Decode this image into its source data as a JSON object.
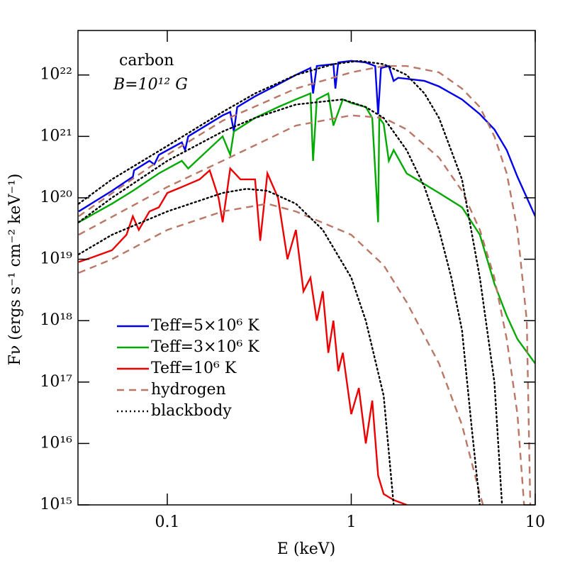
{
  "chart_data": {
    "type": "line",
    "annotations": [
      "carbon",
      "B=10¹² G"
    ],
    "xlabel": "E (keV)",
    "ylabel": "Fν (ergs s⁻¹ cm⁻² keV⁻¹)",
    "xscale": "log",
    "yscale": "log",
    "xlim": [
      0.0327,
      10
    ],
    "ylim": [
      1000000000000000.0,
      5.3e+22
    ],
    "xticks": [
      0.1,
      1,
      10
    ],
    "yticks": [
      {
        "value": 1000000000000000.0,
        "label": "10¹⁵"
      },
      {
        "value": 1e+16,
        "label": "10¹⁶"
      },
      {
        "value": 1e+17,
        "label": "10¹⁷"
      },
      {
        "value": 1e+18,
        "label": "10¹⁸"
      },
      {
        "value": 1e+19,
        "label": "10¹⁹"
      },
      {
        "value": 1e+20,
        "label": "10²⁰"
      },
      {
        "value": 1e+21,
        "label": "10²¹"
      },
      {
        "value": 1e+22,
        "label": "10²²"
      }
    ],
    "legend": "lower left",
    "series": [
      {
        "name": "Teff=5×10⁶ K",
        "color": "#0000ee",
        "style": "solid",
        "x": [
          0.033,
          0.05,
          0.065,
          0.066,
          0.08,
          0.085,
          0.09,
          0.12,
          0.125,
          0.13,
          0.2,
          0.22,
          0.23,
          0.24,
          0.3,
          0.4,
          0.5,
          0.6,
          0.62,
          0.65,
          0.8,
          0.82,
          0.85,
          1,
          1.2,
          1.35,
          1.4,
          1.45,
          1.6,
          1.7,
          1.8,
          2.5,
          3,
          4,
          5,
          6,
          7,
          8,
          10
        ],
        "values": [
          6e+19,
          1.3e+20,
          2.2e+20,
          2.8e+20,
          4e+20,
          3.5e+20,
          5e+20,
          8e+20,
          6e+20,
          1e+21,
          2.2e+21,
          2.5e+21,
          1.2e+21,
          3e+21,
          4.5e+21,
          7e+21,
          1e+22,
          1.3e+22,
          5e+21,
          1.4e+22,
          1.5e+22,
          6e+21,
          1.6e+22,
          1.7e+22,
          1.6e+22,
          1.4e+22,
          2.3e+21,
          1.3e+22,
          1.4e+22,
          8e+21,
          9e+21,
          8e+21,
          6.5e+21,
          4e+21,
          2.3e+21,
          1.3e+21,
          6e+20,
          2.2e+20,
          5e+19
        ]
      },
      {
        "name": "Teff=3×10⁶ K",
        "color": "#00aa00",
        "style": "solid",
        "x": [
          0.033,
          0.05,
          0.065,
          0.09,
          0.12,
          0.13,
          0.2,
          0.22,
          0.23,
          0.3,
          0.4,
          0.5,
          0.6,
          0.62,
          0.65,
          0.75,
          0.8,
          0.9,
          1,
          1.2,
          1.3,
          1.4,
          1.42,
          1.5,
          1.6,
          1.7,
          2,
          3,
          4,
          5,
          6,
          7,
          8,
          10
        ],
        "values": [
          4e+19,
          8e+19,
          1.3e+20,
          2.5e+20,
          4e+20,
          3e+20,
          1e+21,
          5e+20,
          1.2e+21,
          2e+21,
          3e+21,
          4e+21,
          5e+21,
          4e+20,
          4e+21,
          5e+21,
          1.5e+21,
          4e+21,
          3.5e+21,
          3e+21,
          2e+21,
          4e+19,
          2e+21,
          1.6e+21,
          4e+20,
          6e+20,
          2.5e+20,
          1.2e+20,
          7e+19,
          2.5e+19,
          4e+18,
          1.2e+18,
          5e+17,
          2e+17
        ]
      },
      {
        "name": "Teff=10⁶ K",
        "color": "#ee0000",
        "style": "solid",
        "x": [
          0.033,
          0.04,
          0.05,
          0.06,
          0.065,
          0.07,
          0.08,
          0.09,
          0.1,
          0.12,
          0.15,
          0.17,
          0.19,
          0.2,
          0.22,
          0.25,
          0.3,
          0.32,
          0.35,
          0.4,
          0.45,
          0.5,
          0.55,
          0.6,
          0.65,
          0.7,
          0.75,
          0.8,
          0.85,
          0.9,
          1,
          1.1,
          1.2,
          1.3,
          1.4,
          1.5,
          1.7,
          2
        ],
        "values": [
          9e+18,
          1.1e+19,
          1.4e+19,
          2.5e+19,
          5e+19,
          3e+19,
          6e+19,
          7e+19,
          1.2e+20,
          1.5e+20,
          2e+20,
          2.8e+20,
          1e+20,
          4e+19,
          3e+20,
          2e+20,
          2e+20,
          2e+19,
          2.5e+20,
          1e+20,
          1e+19,
          3e+19,
          3e+18,
          5e+18,
          1e+18,
          3e+18,
          3e+17,
          1e+18,
          1.5e+17,
          3e+17,
          3e+16,
          8e+16,
          1e+16,
          5e+16,
          3000000000000000.0,
          1500000000000000.0,
          1200000000000000.0,
          1000000000000000.0
        ]
      },
      {
        "name": "hydrogen",
        "color": "#bb7766",
        "style": "dashed",
        "x": [
          0.033,
          0.1,
          0.2,
          0.5,
          1,
          1.5,
          2,
          3,
          4,
          5,
          6,
          7,
          8,
          9,
          9.4
        ],
        "values": [
          5e+19,
          5e+20,
          1.8e+21,
          6e+21,
          1.1e+22,
          1.4e+22,
          1.4e+22,
          1.1e+22,
          6e+21,
          3e+21,
          1e+21,
          2.5e+20,
          3e+19,
          1e+18,
          1000000000000000.0
        ]
      },
      {
        "name": "hydrogen",
        "color": "#bb7766",
        "style": "dashed",
        "x": [
          0.033,
          0.1,
          0.2,
          0.5,
          1,
          1.5,
          2,
          3,
          4,
          5,
          6,
          7,
          8,
          8.7
        ],
        "values": [
          2.5e+19,
          1.5e+20,
          4e+20,
          1.5e+21,
          2.2e+21,
          2e+21,
          1.3e+21,
          4.5e+20,
          1.3e+20,
          3e+19,
          5e+18,
          5e+17,
          3e+16,
          1000000000000000.0
        ]
      },
      {
        "name": "hydrogen",
        "color": "#bb7766",
        "style": "dashed",
        "x": [
          0.033,
          0.05,
          0.1,
          0.2,
          0.35,
          0.5,
          1,
          1.5,
          2,
          3,
          4,
          5,
          5.2
        ],
        "values": [
          6e+18,
          1e+19,
          3e+19,
          6e+19,
          8e+19,
          6e+19,
          2.5e+19,
          8e+18,
          2e+18,
          2e+17,
          2e+16,
          1500000000000000.0,
          1000000000000000.0
        ]
      },
      {
        "name": "blackbody",
        "color": "#000000",
        "style": "dotted",
        "x": [
          0.033,
          0.05,
          0.1,
          0.2,
          0.3,
          0.5,
          0.8,
          1.1,
          1.5,
          2,
          2.5,
          3,
          4,
          5,
          6,
          6.6
        ],
        "values": [
          8e+19,
          2e+20,
          7e+20,
          2.5e+21,
          5e+21,
          1e+22,
          1.5e+22,
          1.7e+22,
          1.5e+22,
          1e+22,
          5e+21,
          2e+21,
          2e+20,
          5e+18,
          1e+17,
          1000000000000000.0
        ]
      },
      {
        "name": "blackbody",
        "color": "#000000",
        "style": "dotted",
        "x": [
          0.033,
          0.05,
          0.1,
          0.2,
          0.3,
          0.5,
          0.9,
          1.2,
          1.5,
          2,
          2.5,
          3,
          3.5,
          4,
          4.5,
          5
        ],
        "values": [
          4e+19,
          1e+20,
          4e+20,
          1.2e+21,
          2e+21,
          3.3e+21,
          4e+21,
          3e+21,
          2e+21,
          6e+20,
          1.5e+20,
          3e+19,
          5e+18,
          7e+17,
          2e+16,
          1000000000000000.0
        ]
      },
      {
        "name": "blackbody",
        "color": "#000000",
        "style": "dotted",
        "x": [
          0.033,
          0.05,
          0.1,
          0.2,
          0.27,
          0.35,
          0.5,
          0.7,
          1,
          1.2,
          1.5,
          1.7
        ],
        "values": [
          1.2e+19,
          2.5e+19,
          6e+19,
          1.2e+20,
          1.4e+20,
          1.3e+20,
          8e+19,
          3e+19,
          5e+18,
          1e+18,
          6e+16,
          1000000000000000.0
        ]
      }
    ]
  }
}
